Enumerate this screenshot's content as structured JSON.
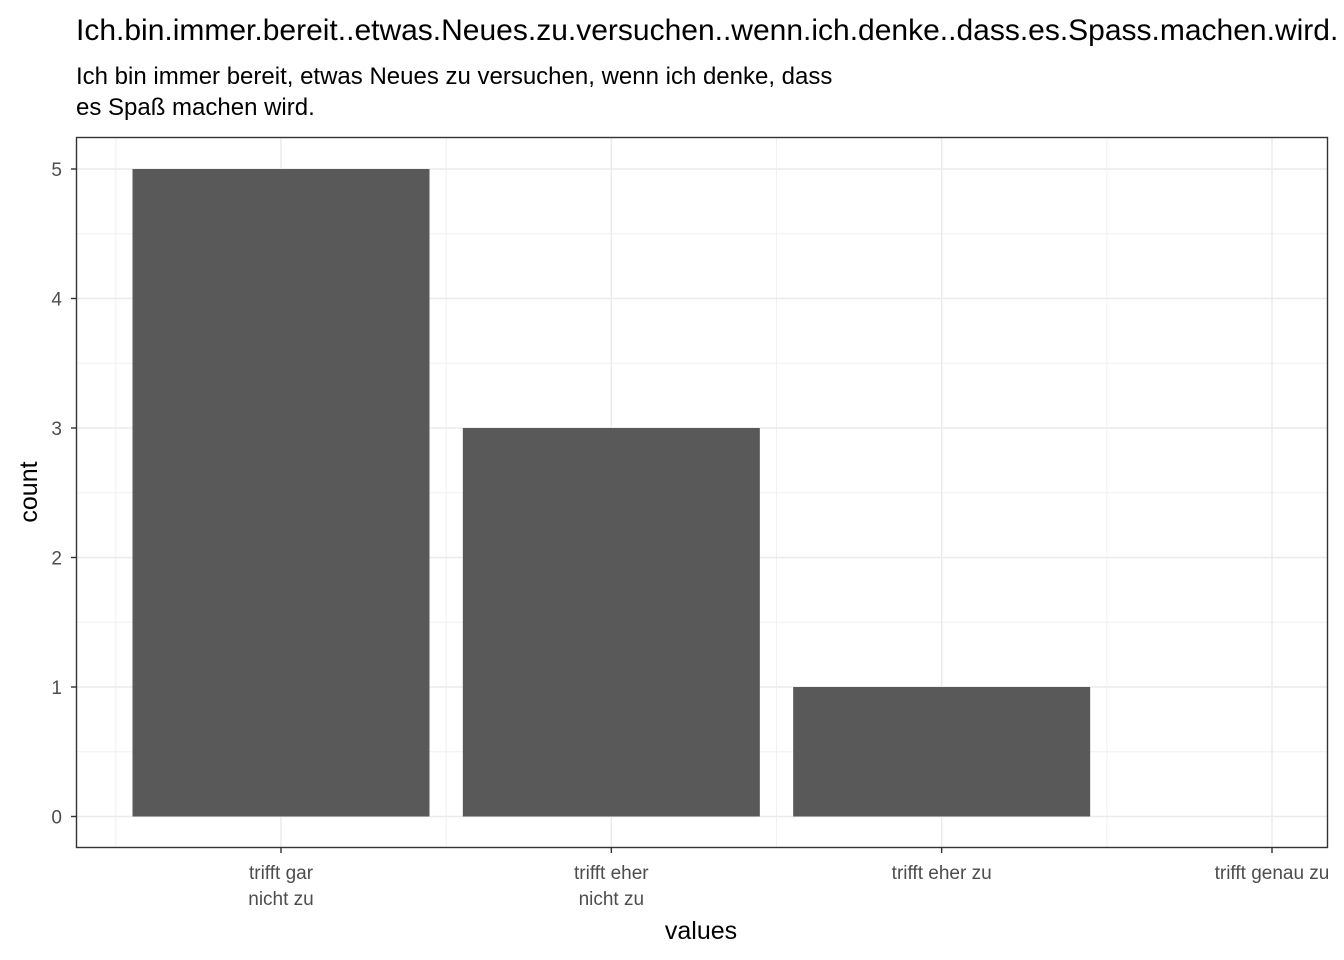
{
  "chart_data": {
    "type": "bar",
    "title": "Ich.bin.immer.bereit..etwas.Neues.zu.versuchen..wenn.ich.denke..dass.es.Spass.machen.wird.",
    "subtitle_lines": [
      "Ich bin immer bereit, etwas Neues zu versuchen, wenn ich denke, dass",
      "es Spaß machen wird."
    ],
    "xlabel": "values",
    "ylabel": "count",
    "categories": [
      [
        "trifft gar",
        "nicht zu"
      ],
      [
        "trifft eher",
        "nicht zu"
      ],
      [
        "trifft eher zu"
      ],
      [
        "trifft genau zu"
      ]
    ],
    "values": [
      5,
      3,
      1,
      0
    ],
    "ylim": [
      0,
      5
    ],
    "yticks": [
      0,
      1,
      2,
      3,
      4,
      5
    ],
    "grid": true,
    "bar_color": "#595959"
  }
}
